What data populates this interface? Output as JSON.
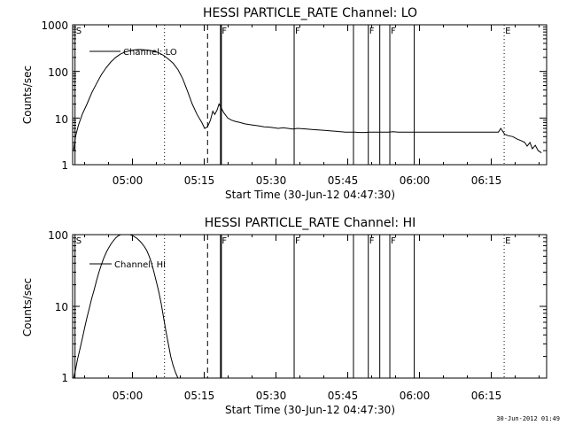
{
  "footer_stamp": "30-Jun-2012 01:49",
  "chart_data": [
    {
      "type": "line",
      "title": "HESSI PARTICLE_RATE Channel: LO",
      "xlabel": "Start Time (30-Jun-12 04:47:30)",
      "ylabel": "Counts/sec",
      "yscale": "log",
      "ylim": [
        1,
        1000
      ],
      "xlim_minutes_after_start": [
        0,
        99
      ],
      "x_ticks": [
        "05:00",
        "05:15",
        "05:30",
        "05:45",
        "06:00",
        "06:15"
      ],
      "y_ticks": [
        "1",
        "10",
        "100",
        "1000"
      ],
      "legend": "Channel: LO",
      "legend_position": "top-left",
      "x_tick_minutes": [
        12.5,
        27.5,
        42.5,
        57.5,
        72.5,
        87.5
      ],
      "markers": [
        {
          "label": "S",
          "minute": 0.5,
          "style": "solid"
        },
        {
          "label": "",
          "minute": 19.2,
          "style": "dotted"
        },
        {
          "label": "",
          "minute": 28.2,
          "style": "dashed"
        },
        {
          "label": "F",
          "minute": 31.0,
          "style": "solid"
        },
        {
          "label": "F",
          "minute": 46.3,
          "style": "solid"
        },
        {
          "label": "",
          "minute": 58.7,
          "style": "solid"
        },
        {
          "label": "F",
          "minute": 61.8,
          "style": "solid"
        },
        {
          "label": "",
          "minute": 64.2,
          "style": "solid"
        },
        {
          "label": "F",
          "minute": 66.3,
          "style": "solid"
        },
        {
          "label": "",
          "minute": 71.4,
          "style": "solid"
        },
        {
          "label": "E",
          "minute": 90.2,
          "style": "dotted"
        },
        {
          "label": "",
          "minute": 106.0,
          "style": "dotted"
        }
      ],
      "series": [
        {
          "name": "Channel: LO",
          "points": [
            [
              0.2,
              2
            ],
            [
              0.6,
              4
            ],
            [
              1.2,
              7
            ],
            [
              2,
              12
            ],
            [
              3,
              20
            ],
            [
              4,
              35
            ],
            [
              5,
              55
            ],
            [
              6,
              85
            ],
            [
              7,
              120
            ],
            [
              8,
              160
            ],
            [
              9,
              200
            ],
            [
              10,
              235
            ],
            [
              11,
              262
            ],
            [
              12,
              278
            ],
            [
              13,
              290
            ],
            [
              14,
              295
            ],
            [
              15,
              292
            ],
            [
              16,
              285
            ],
            [
              17,
              270
            ],
            [
              18,
              250
            ],
            [
              19,
              220
            ],
            [
              20,
              185
            ],
            [
              21,
              150
            ],
            [
              22,
              110
            ],
            [
              23,
              70
            ],
            [
              24,
              38
            ],
            [
              25,
              20
            ],
            [
              26,
              12
            ],
            [
              27,
              8
            ],
            [
              27.6,
              6
            ],
            [
              28.2,
              6.5
            ],
            [
              28.8,
              9
            ],
            [
              29.3,
              14
            ],
            [
              29.7,
              12
            ],
            [
              30.2,
              15
            ],
            [
              30.6,
              20
            ],
            [
              31,
              17
            ],
            [
              31.6,
              13
            ],
            [
              32.4,
              10
            ],
            [
              33.2,
              9
            ],
            [
              34,
              8.5
            ],
            [
              35,
              8
            ],
            [
              36,
              7.5
            ],
            [
              37,
              7.2
            ],
            [
              38,
              7
            ],
            [
              39,
              6.8
            ],
            [
              40,
              6.5
            ],
            [
              41,
              6.4
            ],
            [
              42,
              6.2
            ],
            [
              43,
              6.0
            ],
            [
              44,
              6.2
            ],
            [
              45,
              6.0
            ],
            [
              46,
              5.8
            ],
            [
              47,
              6.0
            ],
            [
              48,
              5.9
            ],
            [
              49,
              5.8
            ],
            [
              50,
              5.7
            ],
            [
              51,
              5.6
            ],
            [
              52,
              5.5
            ],
            [
              53,
              5.4
            ],
            [
              54,
              5.3
            ],
            [
              55,
              5.2
            ],
            [
              56,
              5.1
            ],
            [
              57,
              5.0
            ],
            [
              58,
              5.0
            ],
            [
              59,
              5.0
            ],
            [
              60,
              4.9
            ],
            [
              61,
              4.9
            ],
            [
              62,
              5.0
            ],
            [
              63,
              5.0
            ],
            [
              64,
              5.0
            ],
            [
              65,
              5.0
            ],
            [
              66,
              5.0
            ],
            [
              67,
              5.1
            ],
            [
              68,
              5.0
            ],
            [
              69,
              5.0
            ],
            [
              70,
              5.0
            ],
            [
              71,
              5.0
            ],
            [
              72,
              5.0
            ],
            [
              73,
              5.0
            ],
            [
              74,
              5.0
            ],
            [
              75,
              5.0
            ],
            [
              76,
              5.0
            ],
            [
              77,
              5.0
            ],
            [
              78,
              5.0
            ],
            [
              79,
              5.0
            ],
            [
              80,
              5.0
            ],
            [
              81,
              5.0
            ],
            [
              82,
              5.0
            ],
            [
              83,
              5.0
            ],
            [
              84,
              5.0
            ],
            [
              85,
              5.0
            ],
            [
              86,
              5.0
            ],
            [
              87,
              5.0
            ],
            [
              88,
              5.0
            ],
            [
              89,
              5.0
            ],
            [
              89.5,
              6
            ],
            [
              90.3,
              4.5
            ],
            [
              91,
              4.2
            ],
            [
              92,
              4.0
            ],
            [
              93,
              3.5
            ],
            [
              94,
              3.2
            ],
            [
              94.5,
              3.0
            ],
            [
              95,
              2.5
            ],
            [
              95.6,
              3.0
            ],
            [
              96.1,
              2.2
            ],
            [
              96.7,
              2.6
            ],
            [
              97.3,
              2.0
            ],
            [
              98,
              1.8
            ]
          ]
        }
      ]
    },
    {
      "type": "line",
      "title": "HESSI PARTICLE_RATE Channel: HI",
      "xlabel": "Start Time (30-Jun-12 04:47:30)",
      "ylabel": "Counts/sec",
      "yscale": "log",
      "ylim": [
        1,
        100
      ],
      "xlim_minutes_after_start": [
        0,
        99
      ],
      "x_ticks": [
        "05:00",
        "05:15",
        "05:30",
        "05:45",
        "06:00",
        "06:15"
      ],
      "y_ticks": [
        "1",
        "10",
        "100"
      ],
      "legend": "Channel: HI",
      "legend_position": "top-left",
      "x_tick_minutes": [
        12.5,
        27.5,
        42.5,
        57.5,
        72.5,
        87.5
      ],
      "markers": [
        {
          "label": "S",
          "minute": 0.5,
          "style": "solid"
        },
        {
          "label": "",
          "minute": 19.2,
          "style": "dotted"
        },
        {
          "label": "",
          "minute": 28.2,
          "style": "dashed"
        },
        {
          "label": "F",
          "minute": 31.0,
          "style": "solid"
        },
        {
          "label": "F",
          "minute": 46.3,
          "style": "solid"
        },
        {
          "label": "",
          "minute": 58.7,
          "style": "solid"
        },
        {
          "label": "F",
          "minute": 61.8,
          "style": "solid"
        },
        {
          "label": "",
          "minute": 64.2,
          "style": "solid"
        },
        {
          "label": "F",
          "minute": 66.3,
          "style": "solid"
        },
        {
          "label": "",
          "minute": 71.4,
          "style": "solid"
        },
        {
          "label": "E",
          "minute": 90.2,
          "style": "dotted"
        },
        {
          "label": "",
          "minute": 106.0,
          "style": "dotted"
        }
      ],
      "series": [
        {
          "name": "Channel: HI",
          "points": [
            [
              0.2,
              1.0
            ],
            [
              0.6,
              1.3
            ],
            [
              1.0,
              1.8
            ],
            [
              1.5,
              2.5
            ],
            [
              2,
              3.5
            ],
            [
              2.5,
              5
            ],
            [
              3,
              7
            ],
            [
              3.5,
              9.5
            ],
            [
              4,
              13
            ],
            [
              4.5,
              17
            ],
            [
              5,
              23
            ],
            [
              5.5,
              30
            ],
            [
              6,
              38
            ],
            [
              6.5,
              47
            ],
            [
              7,
              56
            ],
            [
              7.5,
              65
            ],
            [
              8,
              74
            ],
            [
              8.5,
              82
            ],
            [
              9,
              90
            ],
            [
              9.5,
              96
            ],
            [
              10,
              100
            ],
            [
              10.5,
              102
            ],
            [
              11,
              103
            ],
            [
              11.5,
              102
            ],
            [
              12,
              100
            ],
            [
              12.5,
              97
            ],
            [
              13,
              93
            ],
            [
              13.5,
              88
            ],
            [
              14,
              82
            ],
            [
              14.5,
              75
            ],
            [
              15,
              68
            ],
            [
              15.5,
              60
            ],
            [
              16,
              50
            ],
            [
              16.5,
              40
            ],
            [
              17,
              30
            ],
            [
              17.5,
              22
            ],
            [
              18,
              16
            ],
            [
              18.5,
              11
            ],
            [
              19,
              7
            ],
            [
              19.5,
              4.5
            ],
            [
              20,
              3
            ],
            [
              20.5,
              2
            ],
            [
              21,
              1.5
            ],
            [
              21.5,
              1.2
            ],
            [
              22,
              1.0
            ]
          ]
        }
      ]
    }
  ]
}
